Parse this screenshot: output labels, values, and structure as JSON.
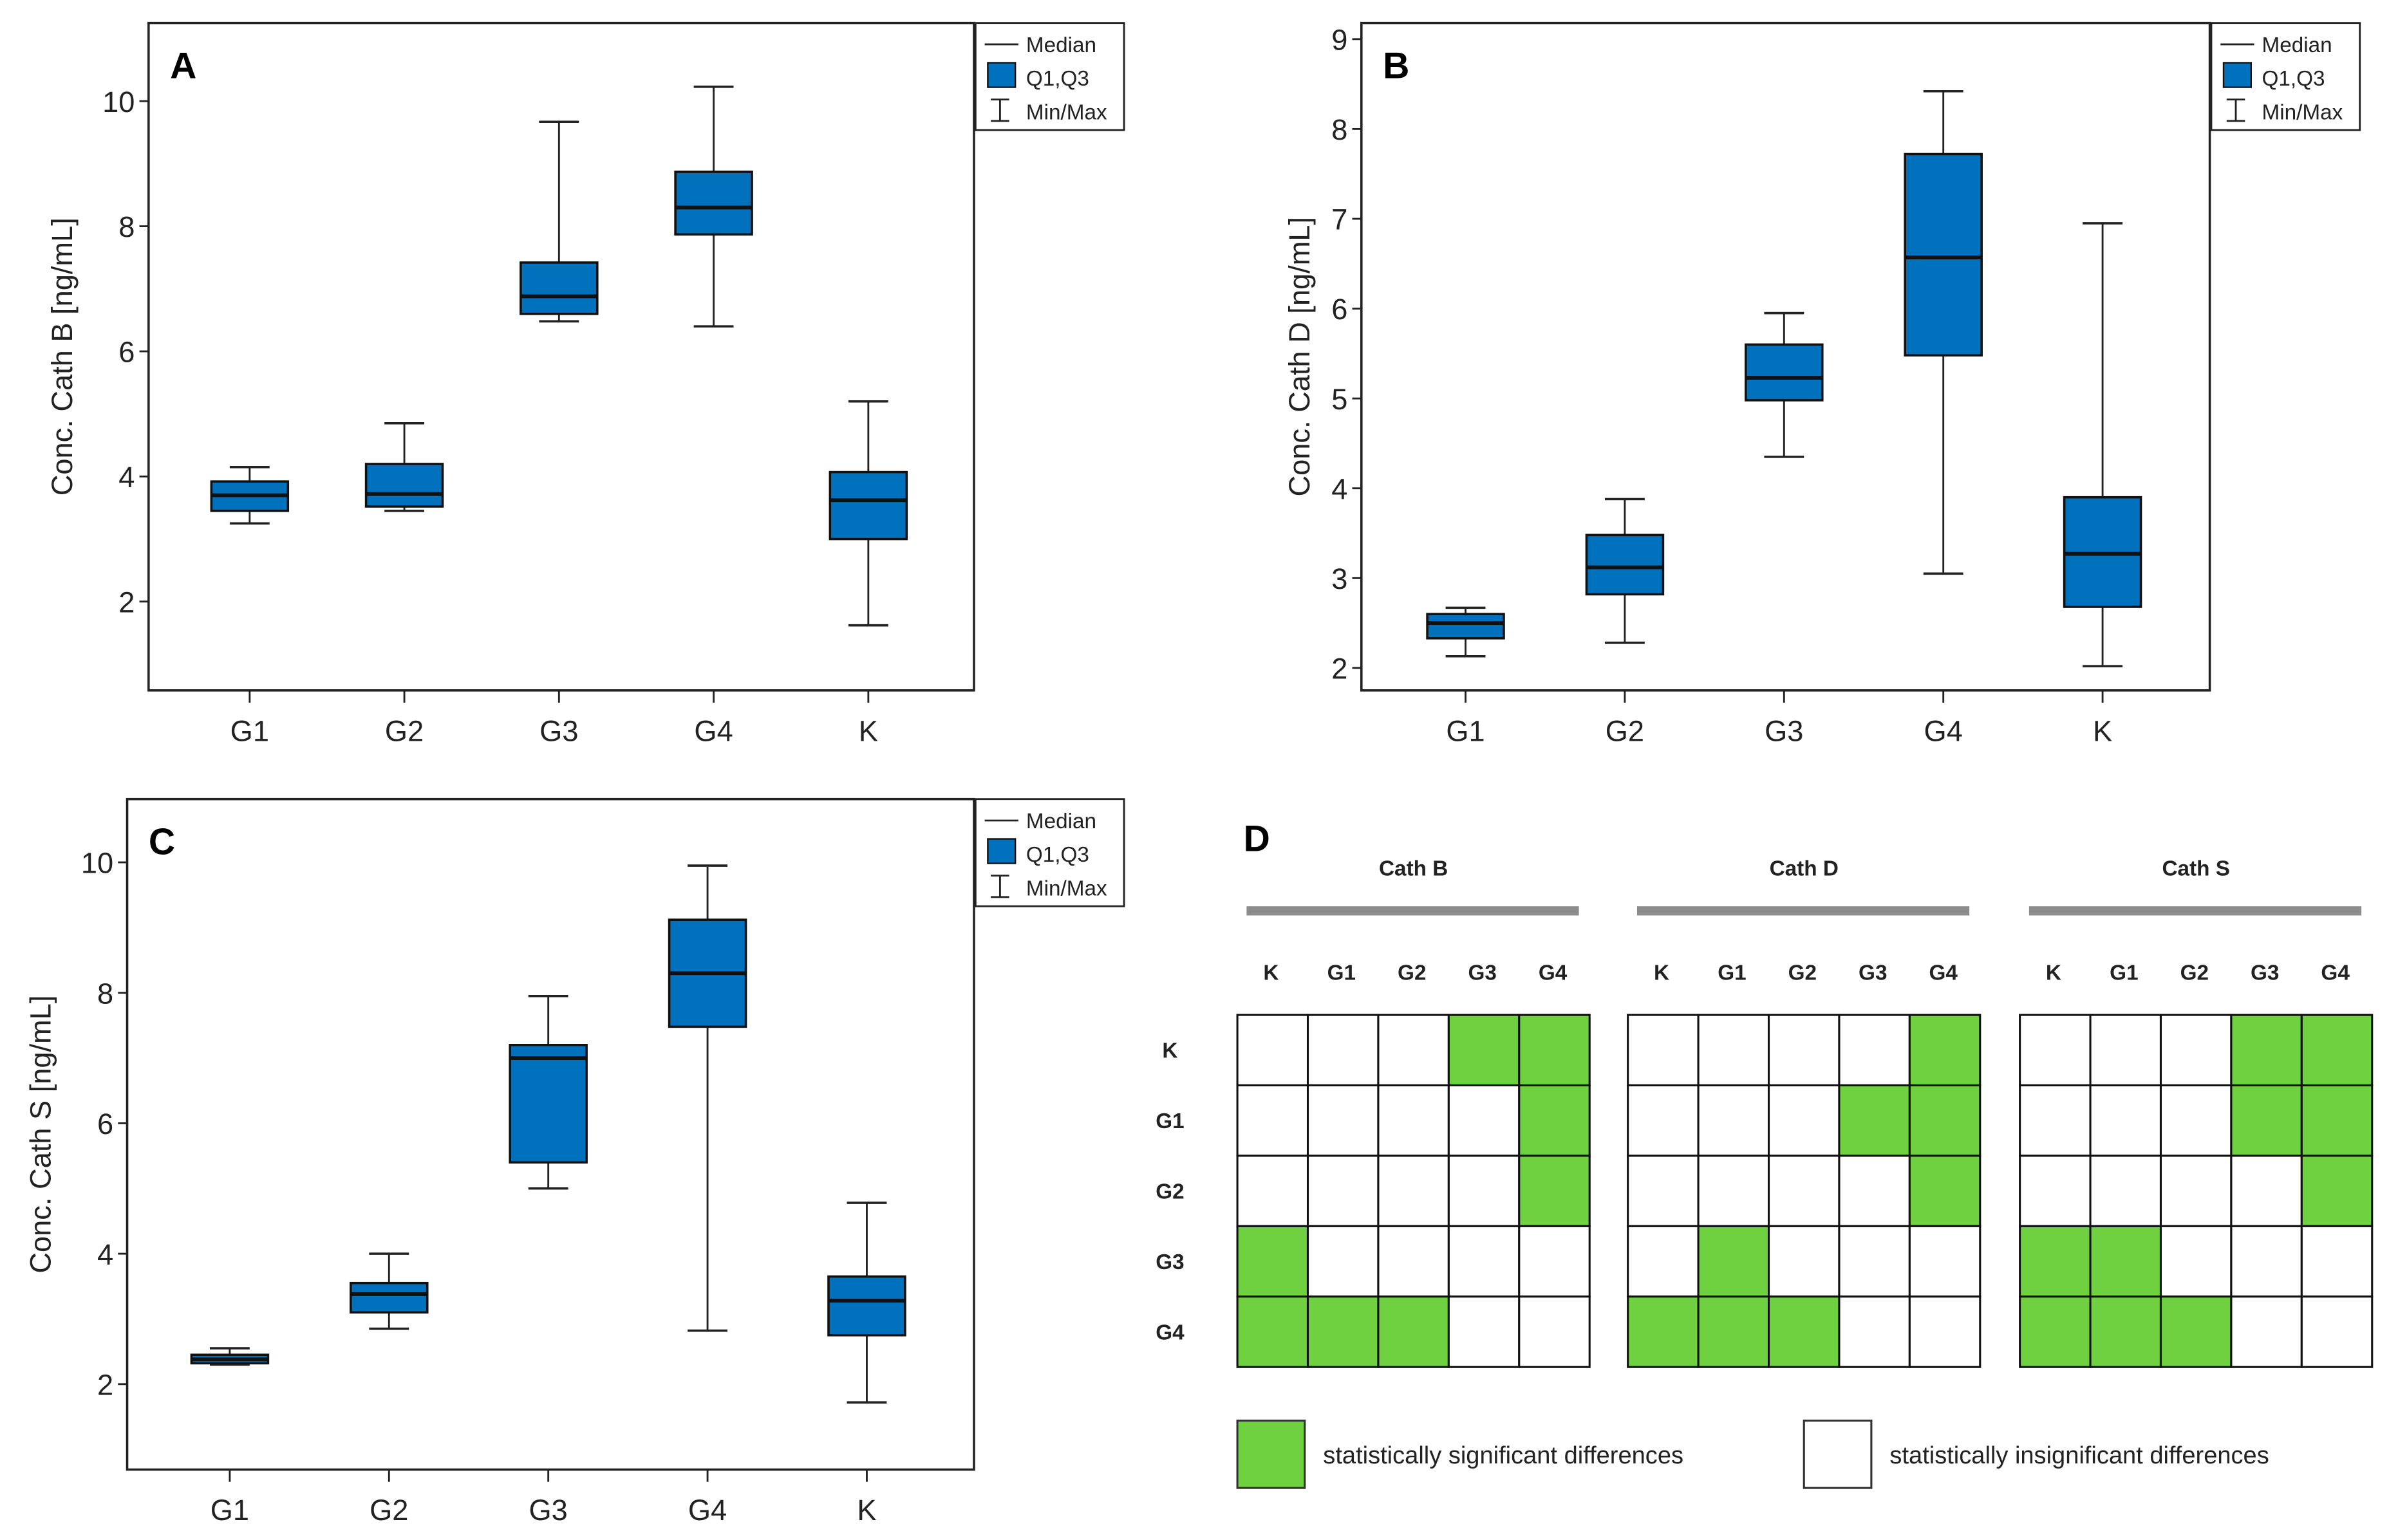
{
  "colors": {
    "box": "#0072bd",
    "significant": "#6fd13f",
    "insignificant": "#ffffff",
    "bar": "#8c8c8c"
  },
  "legend": {
    "median": "Median",
    "iqr": "Q1,Q3",
    "range": "Min/Max"
  },
  "chart_data": [
    {
      "type": "box",
      "panel": "A",
      "ylabel": "Conc. Cath B [ng/mL]",
      "ylim": [
        0.58,
        11.25
      ],
      "yticks": [
        2,
        4,
        6,
        8,
        10
      ],
      "categories": [
        "G1",
        "G2",
        "G3",
        "G4",
        "K"
      ],
      "boxes": [
        {
          "min": 3.25,
          "q1": 3.45,
          "median": 3.7,
          "q3": 3.92,
          "max": 4.15
        },
        {
          "min": 3.45,
          "q1": 3.52,
          "median": 3.72,
          "q3": 4.2,
          "max": 4.85
        },
        {
          "min": 6.48,
          "q1": 6.6,
          "median": 6.88,
          "q3": 7.42,
          "max": 9.67
        },
        {
          "min": 6.4,
          "q1": 7.87,
          "median": 8.3,
          "q3": 8.87,
          "max": 10.23
        },
        {
          "min": 1.62,
          "q1": 3.0,
          "median": 3.62,
          "q3": 4.07,
          "max": 5.2
        }
      ],
      "legend_position": "top-right-outside"
    },
    {
      "type": "box",
      "panel": "B",
      "ylabel": "Conc. Cath D [ng/mL]",
      "ylim": [
        1.75,
        9.18
      ],
      "yticks": [
        2,
        3,
        4,
        5,
        6,
        7,
        8,
        9
      ],
      "categories": [
        "G1",
        "G2",
        "G3",
        "G4",
        "K"
      ],
      "boxes": [
        {
          "min": 2.13,
          "q1": 2.33,
          "median": 2.5,
          "q3": 2.6,
          "max": 2.67
        },
        {
          "min": 2.28,
          "q1": 2.82,
          "median": 3.12,
          "q3": 3.48,
          "max": 3.88
        },
        {
          "min": 4.35,
          "q1": 4.98,
          "median": 5.23,
          "q3": 5.6,
          "max": 5.95
        },
        {
          "min": 3.05,
          "q1": 5.48,
          "median": 6.57,
          "q3": 7.72,
          "max": 8.42
        },
        {
          "min": 2.02,
          "q1": 2.68,
          "median": 3.27,
          "q3": 3.9,
          "max": 6.95
        }
      ],
      "legend_position": "top-right-outside"
    },
    {
      "type": "box",
      "panel": "C",
      "ylabel": "Conc. Cath S [ng/mL]",
      "ylim": [
        0.69,
        10.97
      ],
      "yticks": [
        2,
        4,
        6,
        8,
        10
      ],
      "categories": [
        "G1",
        "G2",
        "G3",
        "G4",
        "K"
      ],
      "boxes": [
        {
          "min": 2.3,
          "q1": 2.32,
          "median": 2.38,
          "q3": 2.45,
          "max": 2.55
        },
        {
          "min": 2.85,
          "q1": 3.1,
          "median": 3.38,
          "q3": 3.55,
          "max": 4.0
        },
        {
          "min": 5.0,
          "q1": 5.4,
          "median": 7.0,
          "q3": 7.2,
          "max": 7.95
        },
        {
          "min": 2.82,
          "q1": 7.48,
          "median": 8.3,
          "q3": 9.12,
          "max": 9.95
        },
        {
          "min": 1.72,
          "q1": 2.75,
          "median": 3.28,
          "q3": 3.65,
          "max": 4.78
        }
      ],
      "legend_position": "top-right-outside"
    },
    {
      "type": "heatmap",
      "panel": "D",
      "labels": [
        "K",
        "G1",
        "G2",
        "G3",
        "G4"
      ],
      "matrices": [
        {
          "title": "Cath B",
          "values": [
            [
              0,
              0,
              0,
              1,
              1
            ],
            [
              0,
              0,
              0,
              0,
              1
            ],
            [
              0,
              0,
              0,
              0,
              1
            ],
            [
              1,
              0,
              0,
              0,
              0
            ],
            [
              1,
              1,
              1,
              0,
              0
            ]
          ]
        },
        {
          "title": "Cath D",
          "values": [
            [
              0,
              0,
              0,
              0,
              1
            ],
            [
              0,
              0,
              0,
              1,
              1
            ],
            [
              0,
              0,
              0,
              0,
              1
            ],
            [
              0,
              1,
              0,
              0,
              0
            ],
            [
              1,
              1,
              1,
              0,
              0
            ]
          ]
        },
        {
          "title": "Cath S",
          "values": [
            [
              0,
              0,
              0,
              1,
              1
            ],
            [
              0,
              0,
              0,
              1,
              1
            ],
            [
              0,
              0,
              0,
              0,
              1
            ],
            [
              1,
              1,
              0,
              0,
              0
            ],
            [
              1,
              1,
              1,
              0,
              0
            ]
          ]
        }
      ],
      "legend": {
        "significant": "statistically significant differences",
        "insignificant": "statistically insignificant differences"
      }
    }
  ]
}
